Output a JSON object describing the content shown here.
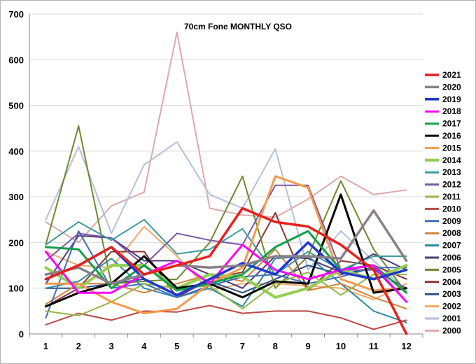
{
  "chart_data": {
    "type": "line",
    "title": "70cm Fone MONTHLY QSO",
    "xlabel": "",
    "ylabel": "",
    "x": [
      1,
      2,
      3,
      4,
      5,
      6,
      7,
      8,
      9,
      10,
      11,
      12
    ],
    "ylim": [
      0,
      700
    ],
    "yticks": [
      0,
      100,
      200,
      300,
      400,
      500,
      600,
      700
    ],
    "grid": "horizontal",
    "legend_position": "right",
    "series": [
      {
        "name": "2021",
        "color": "#e8201c",
        "width": 3.5,
        "values": [
          120,
          150,
          190,
          130,
          150,
          170,
          275,
          245,
          235,
          195,
          140,
          0
        ]
      },
      {
        "name": "2020",
        "color": "#8c8088",
        "width": 3.5,
        "values": [
          130,
          145,
          110,
          130,
          150,
          145,
          150,
          170,
          170,
          165,
          270,
          160
        ]
      },
      {
        "name": "2019",
        "color": "#1f37cf",
        "width": 3.5,
        "values": [
          120,
          150,
          190,
          120,
          85,
          120,
          155,
          130,
          200,
          135,
          120,
          140
        ]
      },
      {
        "name": "2018",
        "color": "#ff00ff",
        "width": 3,
        "values": [
          180,
          90,
          90,
          130,
          160,
          110,
          195,
          140,
          120,
          140,
          150,
          70
        ]
      },
      {
        "name": "2017",
        "color": "#10a04a",
        "width": 3,
        "values": [
          190,
          185,
          100,
          150,
          95,
          110,
          130,
          190,
          225,
          140,
          150,
          90
        ]
      },
      {
        "name": "2016",
        "color": "#000000",
        "width": 3,
        "values": [
          60,
          90,
          110,
          170,
          100,
          110,
          80,
          115,
          110,
          305,
          90,
          100
        ]
      },
      {
        "name": "2015",
        "color": "#f59a4a",
        "width": 3,
        "values": [
          110,
          110,
          70,
          45,
          55,
          110,
          145,
          345,
          320,
          120,
          95,
          100
        ]
      },
      {
        "name": "2014",
        "color": "#92d050",
        "width": 4,
        "values": [
          145,
          100,
          150,
          150,
          100,
          130,
          125,
          80,
          100,
          140,
          120,
          150
        ]
      },
      {
        "name": "2013",
        "color": "#3a9aa0",
        "width": 2,
        "values": [
          195,
          245,
          205,
          250,
          175,
          185,
          230,
          130,
          180,
          140,
          170,
          170
        ]
      },
      {
        "name": "2012",
        "color": "#7a57a6",
        "width": 2,
        "values": [
          160,
          220,
          210,
          150,
          220,
          205,
          195,
          325,
          325,
          140,
          140,
          100
        ]
      },
      {
        "name": "2011",
        "color": "#97b64a",
        "width": 2,
        "values": [
          50,
          40,
          70,
          110,
          100,
          105,
          55,
          110,
          135,
          85,
          130,
          130
        ]
      },
      {
        "name": "2010",
        "color": "#bb4b47",
        "width": 2,
        "values": [
          20,
          45,
          30,
          50,
          48,
          62,
          45,
          50,
          50,
          35,
          10,
          30
        ]
      },
      {
        "name": "2009",
        "color": "#3f6ebb",
        "width": 2,
        "values": [
          35,
          225,
          100,
          110,
          80,
          105,
          125,
          130,
          110,
          125,
          145,
          145
        ]
      },
      {
        "name": "2008",
        "color": "#d2823e",
        "width": 2,
        "values": [
          65,
          110,
          110,
          90,
          110,
          130,
          115,
          185,
          95,
          110,
          80,
          55
        ]
      },
      {
        "name": "2007",
        "color": "#2c8aa4",
        "width": 2,
        "values": [
          100,
          115,
          165,
          100,
          80,
          100,
          60,
          165,
          170,
          110,
          50,
          25
        ]
      },
      {
        "name": "2006",
        "color": "#4e3a78",
        "width": 2,
        "values": [
          110,
          215,
          210,
          160,
          160,
          130,
          100,
          170,
          165,
          135,
          175,
          140
        ]
      },
      {
        "name": "2005",
        "color": "#6b8a2e",
        "width": 2,
        "values": [
          195,
          455,
          110,
          115,
          120,
          200,
          345,
          100,
          170,
          335,
          185,
          90
        ]
      },
      {
        "name": "2004",
        "color": "#8b3230",
        "width": 2,
        "values": [
          60,
          100,
          180,
          180,
          80,
          120,
          135,
          265,
          95,
          160,
          150,
          120
        ]
      },
      {
        "name": "2003",
        "color": "#2a4f85",
        "width": 2,
        "values": [
          100,
          100,
          110,
          120,
          85,
          115,
          90,
          120,
          150,
          130,
          145,
          70
        ]
      },
      {
        "name": "2002",
        "color": "#f5a867",
        "width": 2,
        "values": [
          180,
          150,
          145,
          235,
          170,
          95,
          110,
          110,
          105,
          100,
          75,
          110
        ]
      },
      {
        "name": "2001",
        "color": "#b2c0dc",
        "width": 2,
        "values": [
          250,
          410,
          220,
          370,
          420,
          305,
          275,
          405,
          140,
          225,
          160,
          95
        ]
      },
      {
        "name": "2000",
        "color": "#dcaaa8",
        "width": 2,
        "values": [
          245,
          200,
          280,
          310,
          660,
          275,
          260,
          255,
          295,
          345,
          305,
          315
        ]
      }
    ]
  }
}
